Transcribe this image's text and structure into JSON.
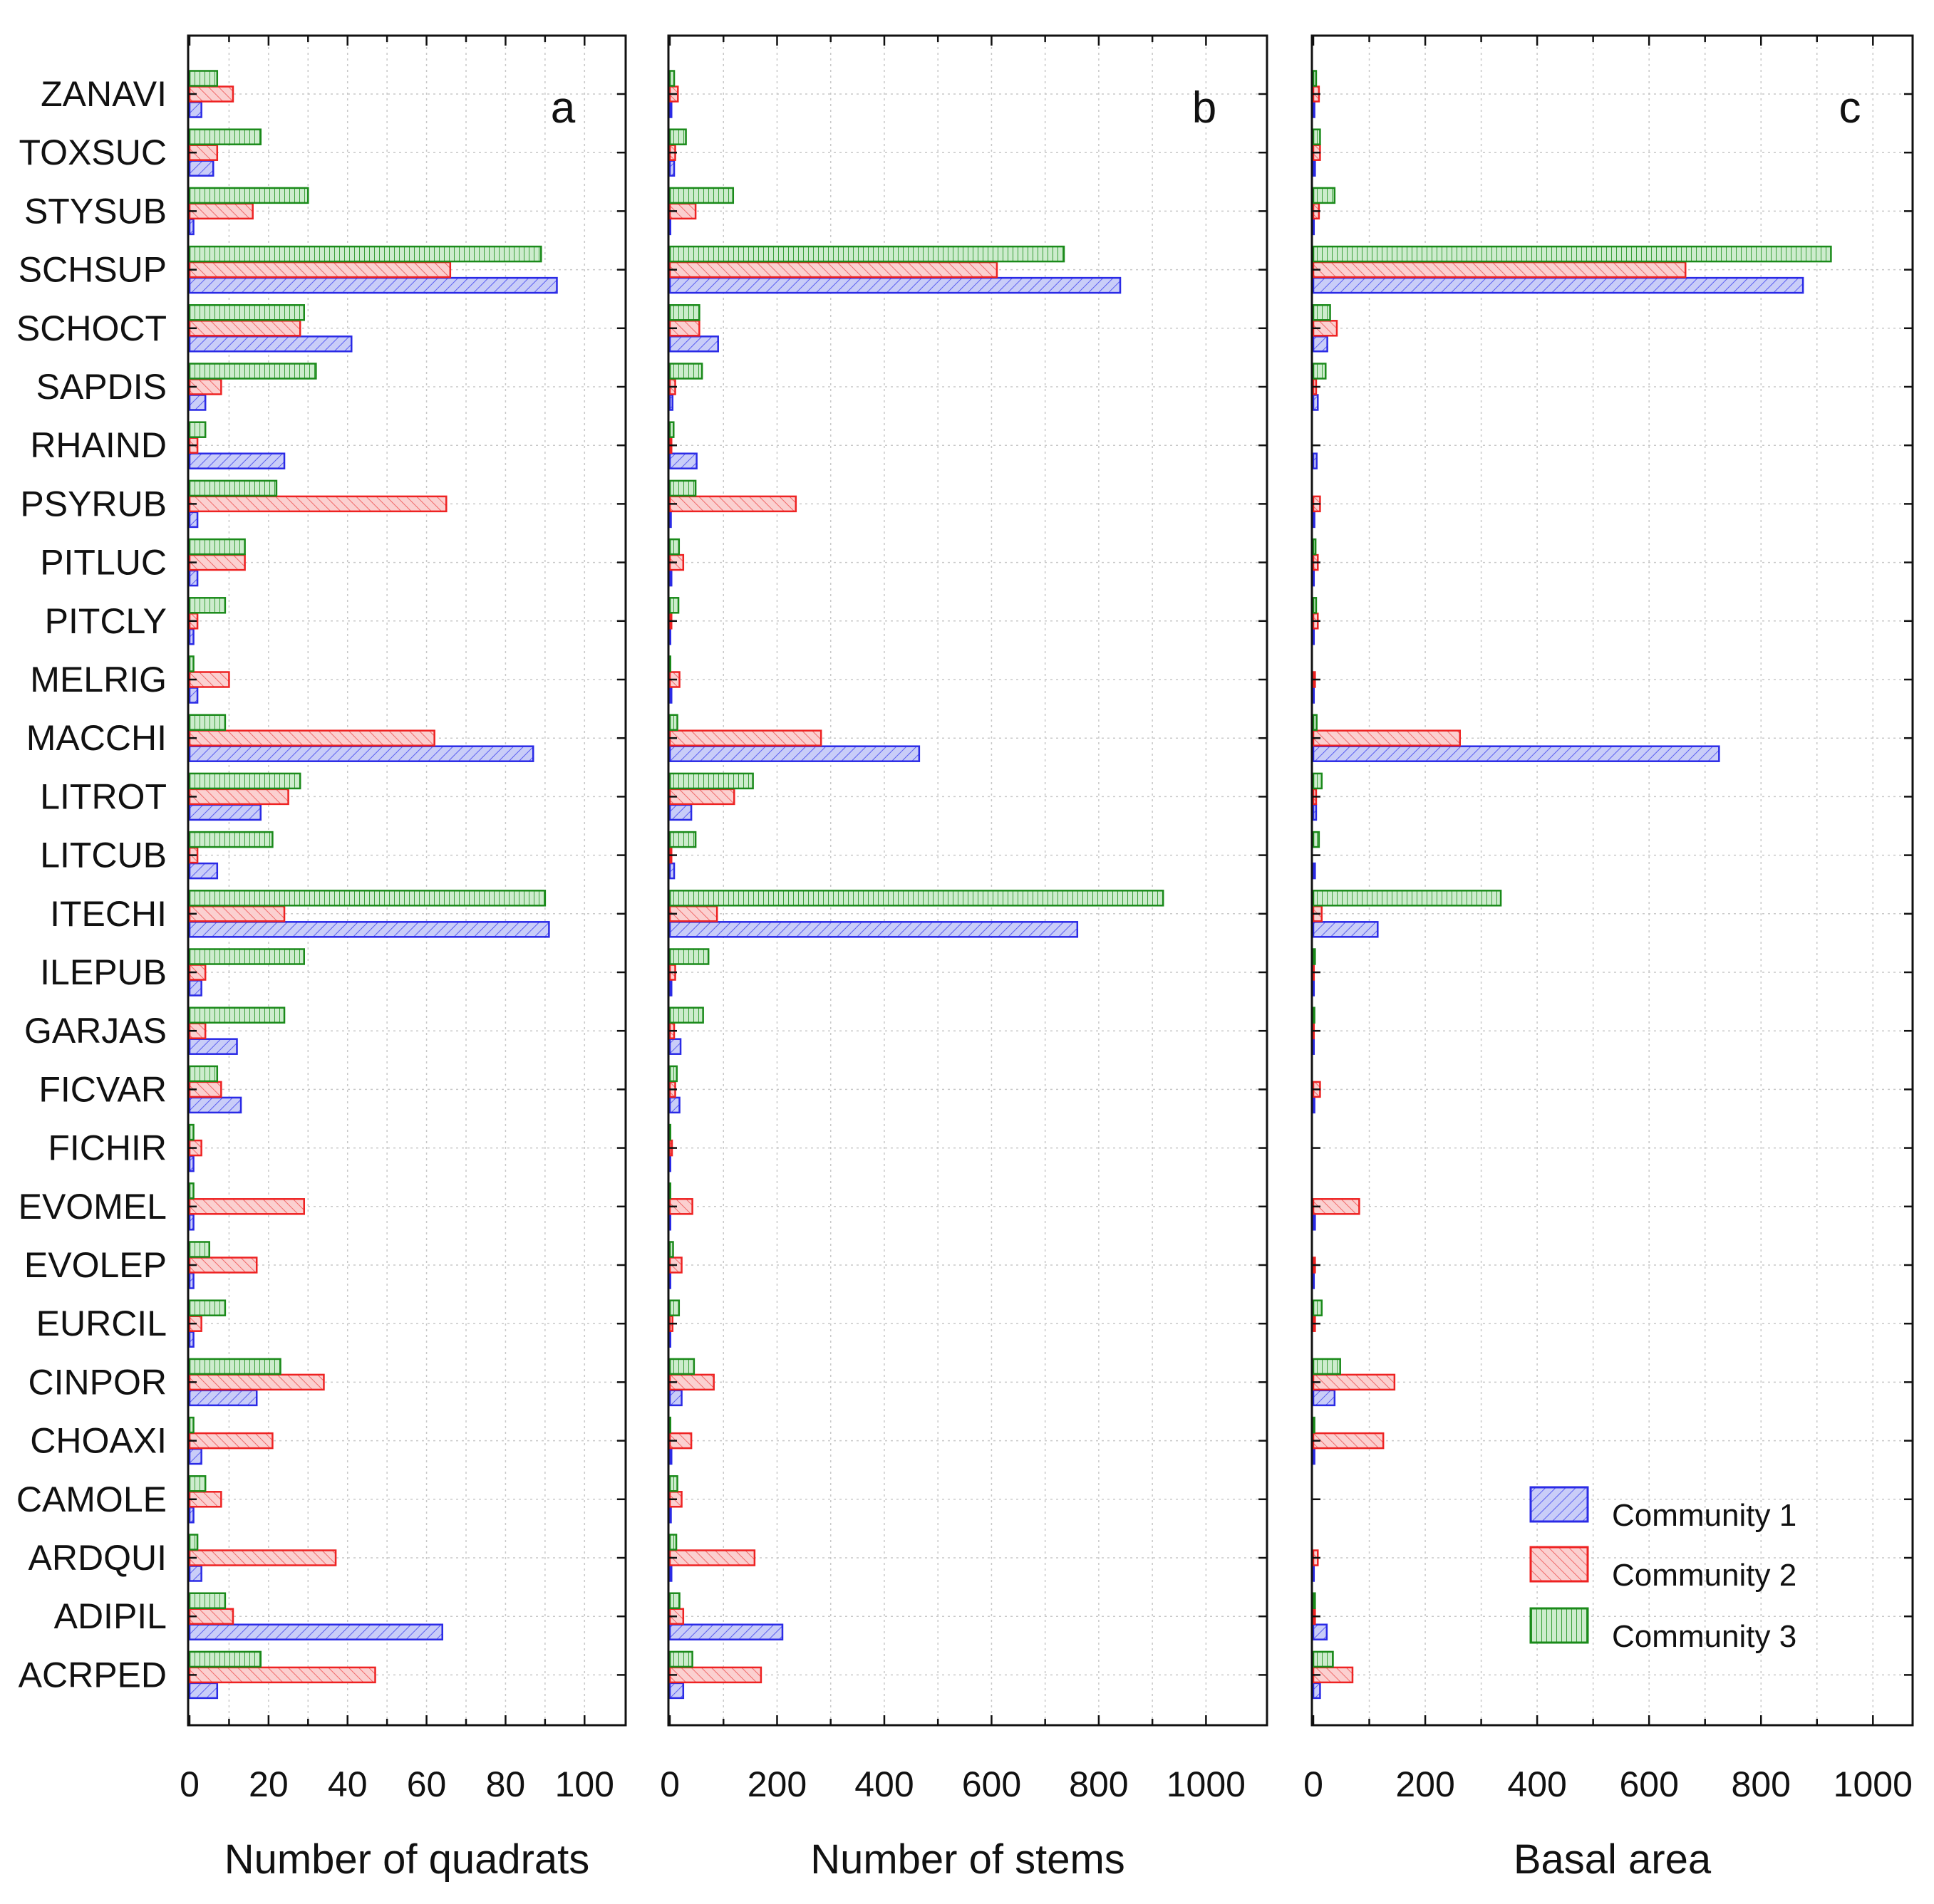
{
  "chart_data": {
    "type": "bar",
    "orientation": "horizontal",
    "categories": [
      "ZANAVI",
      "TOXSUC",
      "STYSUB",
      "SCHSUP",
      "SCHOCT",
      "SAPDIS",
      "RHAIND",
      "PSYRUB",
      "PITLUC",
      "PITCLY",
      "MELRIG",
      "MACCHI",
      "LITROT",
      "LITCUB",
      "ITECHI",
      "ILEPUB",
      "GARJAS",
      "FICVAR",
      "FICHIR",
      "EVOMEL",
      "EVOLEP",
      "EURCIL",
      "CINPOR",
      "CHOAXI",
      "CAMOLE",
      "ARDQUI",
      "ADIPIL",
      "ACRPED"
    ],
    "legend": {
      "placement": "bottom-right of panel c",
      "entries": [
        "Community 1",
        "Community 2",
        "Community 3"
      ]
    },
    "colors": {
      "community1_edge": "#2a2ae6",
      "community1_fill": "#c9cdf8",
      "community2_edge": "#ee2222",
      "community2_fill": "#fbd0d0",
      "community3_edge": "#1a8a1a",
      "community3_fill": "#cdeccd"
    },
    "grid": true,
    "panels": [
      {
        "letter": "a",
        "xlabel": "Number of quadrats",
        "xlim": [
          0,
          105
        ],
        "ticks": [
          0,
          20,
          40,
          60,
          80,
          100
        ],
        "series": [
          {
            "name": "Community 1",
            "values": [
              3,
              6,
              1,
              93,
              41,
              4,
              24,
              2,
              2,
              1,
              2,
              87,
              18,
              7,
              91,
              3,
              12,
              13,
              1,
              1,
              1,
              1,
              17,
              3,
              1,
              3,
              64,
              7
            ]
          },
          {
            "name": "Community 2",
            "values": [
              11,
              7,
              16,
              66,
              28,
              8,
              2,
              65,
              14,
              2,
              10,
              62,
              25,
              2,
              24,
              4,
              4,
              8,
              3,
              29,
              17,
              3,
              34,
              21,
              8,
              37,
              11,
              47
            ]
          },
          {
            "name": "Community 3",
            "values": [
              7,
              18,
              30,
              89,
              29,
              32,
              4,
              22,
              14,
              9,
              1,
              9,
              28,
              21,
              90,
              29,
              24,
              7,
              1,
              1,
              5,
              9,
              23,
              1,
              4,
              2,
              9,
              18
            ]
          }
        ]
      },
      {
        "letter": "b",
        "xlabel": "Number of stems",
        "xlim": [
          0,
          1050
        ],
        "ticks": [
          0,
          200,
          400,
          600,
          800,
          1000
        ],
        "series": [
          {
            "name": "Community 1",
            "values": [
              3,
              8,
              1,
              840,
              90,
              5,
              50,
              2,
              3,
              1,
              3,
              465,
              40,
              8,
              760,
              3,
              20,
              18,
              1,
              1,
              1,
              1,
              22,
              3,
              2,
              3,
              210,
              25
            ]
          },
          {
            "name": "Community 2",
            "values": [
              15,
              10,
              48,
              610,
              55,
              10,
              3,
              235,
              25,
              3,
              18,
              282,
              120,
              3,
              88,
              10,
              8,
              10,
              4,
              42,
              22,
              5,
              82,
              40,
              22,
              158,
              25,
              170
            ]
          },
          {
            "name": "Community 3",
            "values": [
              8,
              30,
              118,
              735,
              55,
              60,
              7,
              48,
              17,
              16,
              1,
              14,
              155,
              48,
              920,
              72,
              62,
              13,
              1,
              1,
              6,
              17,
              45,
              1,
              14,
              12,
              18,
              42
            ]
          }
        ]
      },
      {
        "letter": "c",
        "xlabel": "Basal area",
        "xlim": [
          0,
          1020
        ],
        "ticks": [
          0,
          200,
          400,
          600,
          800,
          1000
        ],
        "series": [
          {
            "name": "Community 1",
            "values": [
              2,
              3,
              1,
              875,
              25,
              8,
              6,
              2,
              1,
              1,
              1,
              725,
              5,
              3,
              115,
              1,
              1,
              2,
              0,
              3,
              1,
              0,
              38,
              2,
              0,
              1,
              24,
              12
            ]
          },
          {
            "name": "Community 2",
            "values": [
              10,
              12,
              10,
              665,
              42,
              5,
              0,
              12,
              8,
              8,
              3,
              262,
              5,
              0,
              15,
              1,
              1,
              12,
              0,
              82,
              3,
              3,
              145,
              125,
              0,
              8,
              3,
              70
            ]
          },
          {
            "name": "Community 3",
            "values": [
              5,
              12,
              38,
              925,
              30,
              22,
              0,
              0,
              4,
              5,
              0,
              6,
              15,
              10,
              335,
              3,
              2,
              0,
              0,
              0,
              0,
              15,
              48,
              2,
              0,
              0,
              3,
              35
            ]
          }
        ]
      }
    ]
  }
}
